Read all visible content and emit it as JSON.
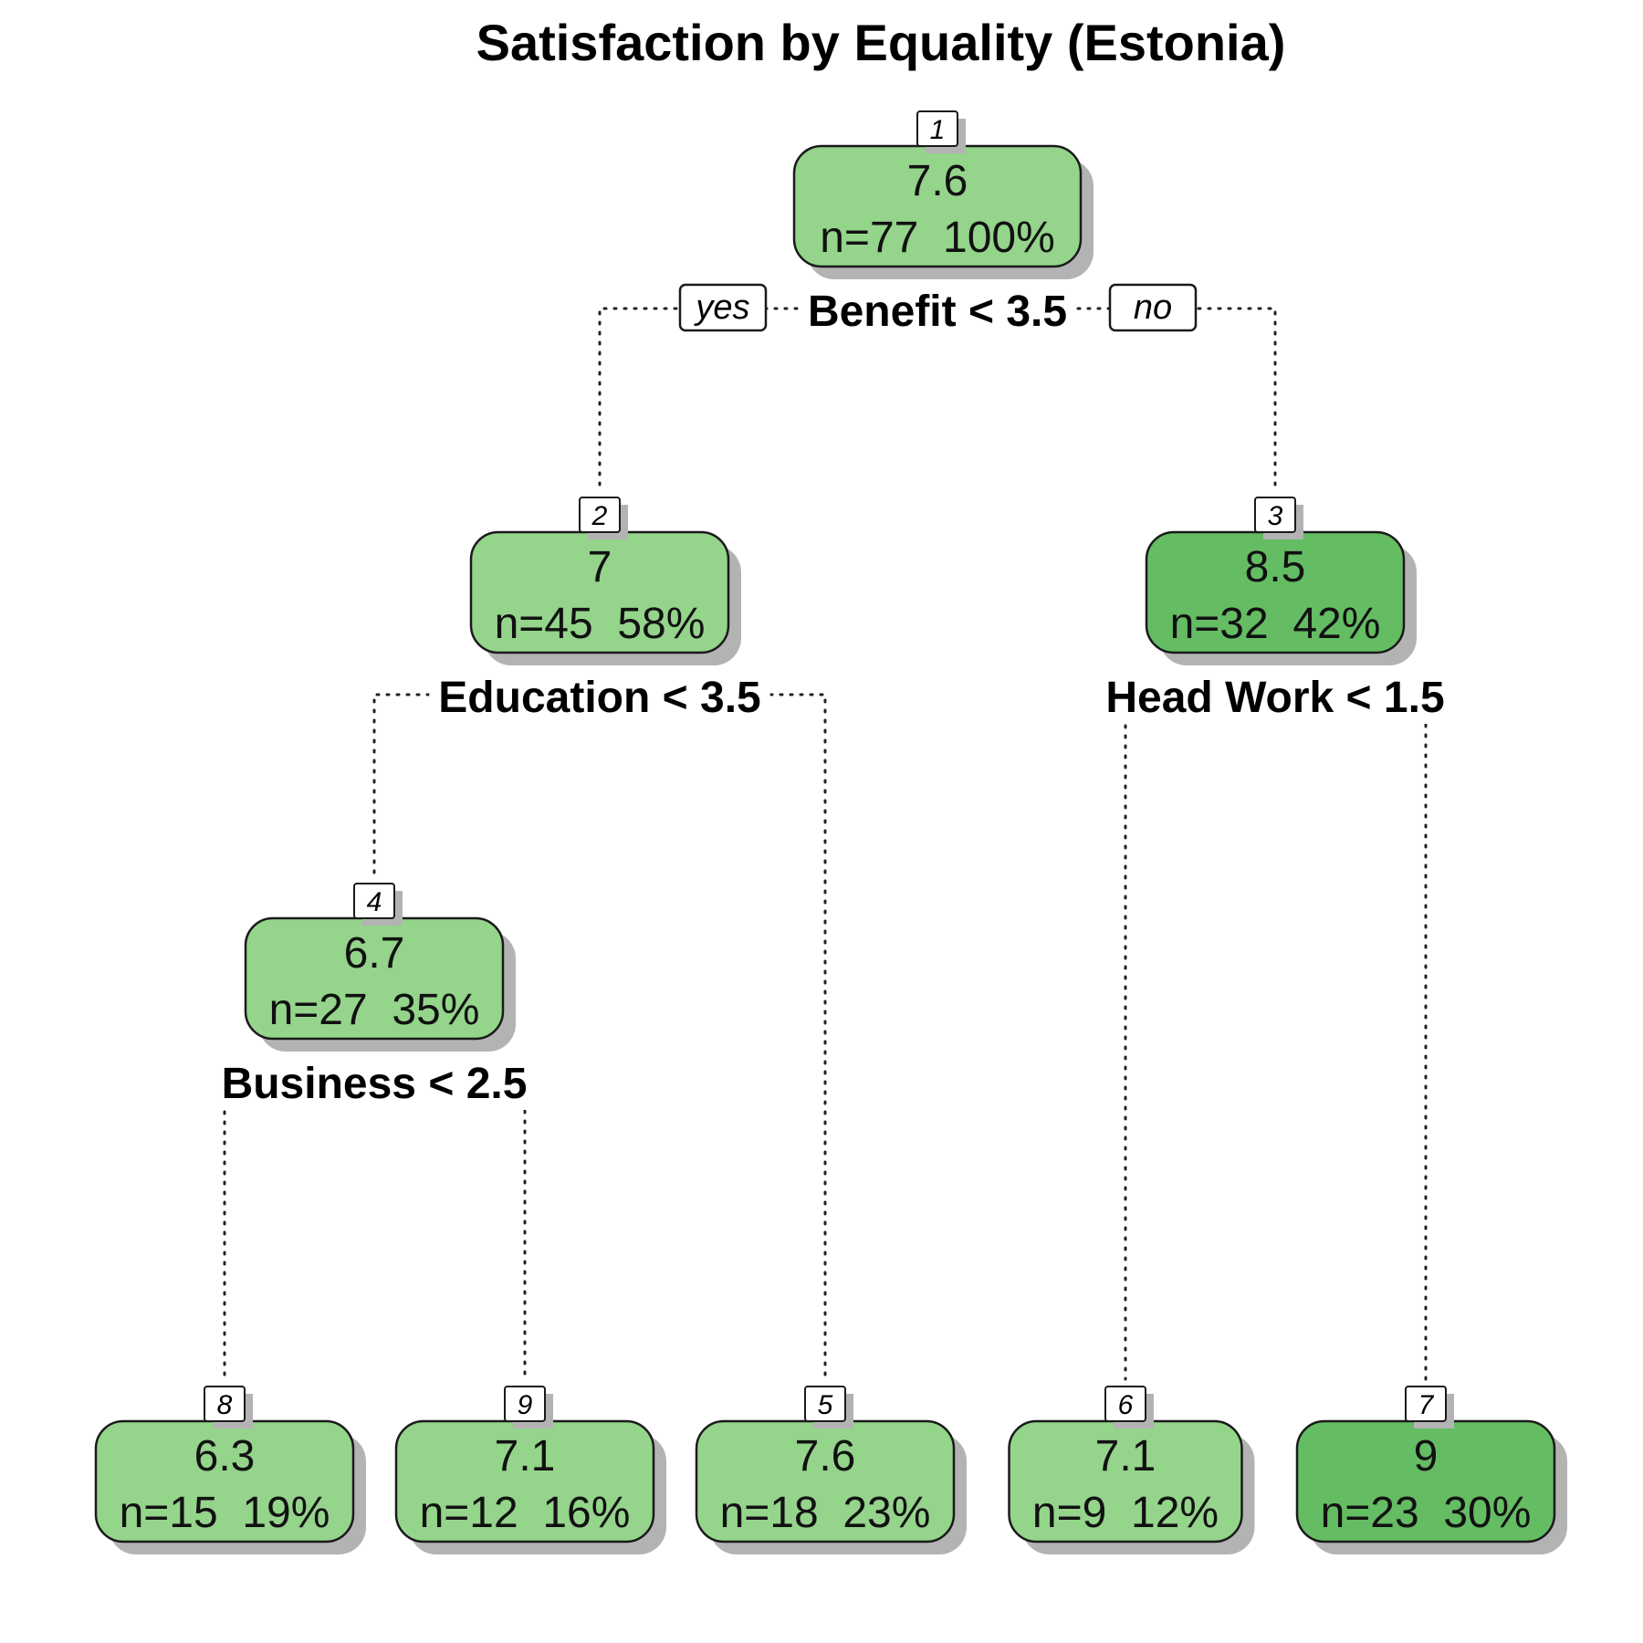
{
  "title": "Satisfaction by Equality (Estonia)",
  "colors": {
    "light_green": "#94d48b",
    "dark_green": "#64bc63",
    "shadow": "#b3b3b3"
  },
  "branch_labels": {
    "yes": "yes",
    "no": "no"
  },
  "nodes": [
    {
      "id": "1",
      "value": "7.6",
      "stats": "n=77  100%",
      "shade": "light",
      "split": "Benefit < 3.5"
    },
    {
      "id": "2",
      "value": "7",
      "stats": "n=45  58%",
      "shade": "light",
      "split": "Education < 3.5"
    },
    {
      "id": "3",
      "value": "8.5",
      "stats": "n=32  42%",
      "shade": "dark",
      "split": "Head Work < 1.5"
    },
    {
      "id": "4",
      "value": "6.7",
      "stats": "n=27  35%",
      "shade": "light",
      "split": "Business < 2.5"
    },
    {
      "id": "8",
      "value": "6.3",
      "stats": "n=15  19%",
      "shade": "light",
      "split": ""
    },
    {
      "id": "9",
      "value": "7.1",
      "stats": "n=12  16%",
      "shade": "light",
      "split": ""
    },
    {
      "id": "5",
      "value": "7.6",
      "stats": "n=18  23%",
      "shade": "light",
      "split": ""
    },
    {
      "id": "6",
      "value": "7.1",
      "stats": "n=9  12%",
      "shade": "light",
      "split": ""
    },
    {
      "id": "7",
      "value": "9",
      "stats": "n=23  30%",
      "shade": "dark",
      "split": ""
    }
  ],
  "edges": [
    {
      "from": "1",
      "to": "2"
    },
    {
      "from": "1",
      "to": "3"
    },
    {
      "from": "2",
      "to": "4"
    },
    {
      "from": "2",
      "to": "5"
    },
    {
      "from": "4",
      "to": "8"
    },
    {
      "from": "4",
      "to": "9"
    },
    {
      "from": "3",
      "to": "6"
    },
    {
      "from": "3",
      "to": "7"
    }
  ]
}
